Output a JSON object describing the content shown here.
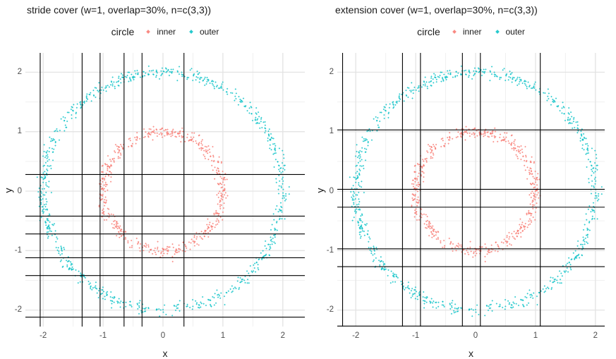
{
  "page": {
    "background": "#ffffff"
  },
  "chart_data": [
    {
      "type": "scatter",
      "title": "stride cover (w=1, overlap=30%, n=c(3,3))",
      "xlabel": "x",
      "ylabel": "y",
      "xlim": [
        -2.3,
        2.37
      ],
      "ylim": [
        -2.28,
        2.32
      ],
      "x_ticks": [
        -2,
        -1,
        0,
        1,
        2
      ],
      "y_ticks": [
        -2,
        -1,
        0,
        1,
        2
      ],
      "grid": "major-and-minor-light-grey",
      "legend_position": "top-center",
      "legend_title": "circle",
      "series": [
        {
          "name": "inner",
          "color": "#F8766D",
          "pattern": "noisy-circle",
          "center": [
            0,
            0
          ],
          "radius": 1,
          "noise_sd": 0.05,
          "n_points": 530
        },
        {
          "name": "outer",
          "color": "#00BFC4",
          "pattern": "noisy-circle",
          "center": [
            0,
            0
          ],
          "radius": 2,
          "noise_sd": 0.05,
          "n_points": 800
        }
      ],
      "cover": {
        "style": "stride",
        "line_color": "#000000",
        "vline_x": [
          -2.05,
          -1.35,
          -1.05,
          -0.65,
          -0.35,
          0.35
        ],
        "hline_y": [
          0.28,
          -0.42,
          -0.72,
          -1.12,
          -1.42,
          -2.12
        ],
        "x_intervals": [
          [
            -2.05,
            -1.05
          ],
          [
            -1.35,
            -0.35
          ],
          [
            -0.65,
            0.35
          ]
        ],
        "y_intervals": [
          [
            -2.12,
            -1.12
          ],
          [
            -1.42,
            -0.42
          ],
          [
            -0.72,
            0.28
          ]
        ]
      }
    },
    {
      "type": "scatter",
      "title": "extension cover (w=1, overlap=30%, n=c(3,3))",
      "xlabel": "x",
      "ylabel": "y",
      "xlim": [
        -2.31,
        2.15
      ],
      "ylim": [
        -2.28,
        2.32
      ],
      "x_ticks": [
        -2,
        -1,
        0,
        1,
        2
      ],
      "y_ticks": [
        -2,
        -1,
        0,
        1,
        2
      ],
      "grid": "major-and-minor-light-grey",
      "legend_position": "top-center",
      "legend_title": "circle",
      "series": [
        {
          "name": "inner",
          "color": "#F8766D",
          "pattern": "noisy-circle",
          "center": [
            0,
            0
          ],
          "radius": 1,
          "noise_sd": 0.05,
          "n_points": 530
        },
        {
          "name": "outer",
          "color": "#00BFC4",
          "pattern": "noisy-circle",
          "center": [
            0,
            0
          ],
          "radius": 2,
          "noise_sd": 0.05,
          "n_points": 800
        }
      ],
      "cover": {
        "style": "extension",
        "line_color": "#000000",
        "vline_x": [
          -2.22,
          -1.22,
          -0.92,
          -0.22,
          0.08,
          1.08
        ],
        "hline_y": [
          1.03,
          0.03,
          -0.27,
          -0.97,
          -1.27,
          -2.27
        ],
        "x_intervals": [
          [
            -2.22,
            -0.92
          ],
          [
            -1.22,
            0.08
          ],
          [
            -0.22,
            1.08
          ]
        ],
        "y_intervals": [
          [
            -2.27,
            -0.97
          ],
          [
            -1.27,
            0.03
          ],
          [
            -0.27,
            1.03
          ]
        ]
      }
    }
  ]
}
